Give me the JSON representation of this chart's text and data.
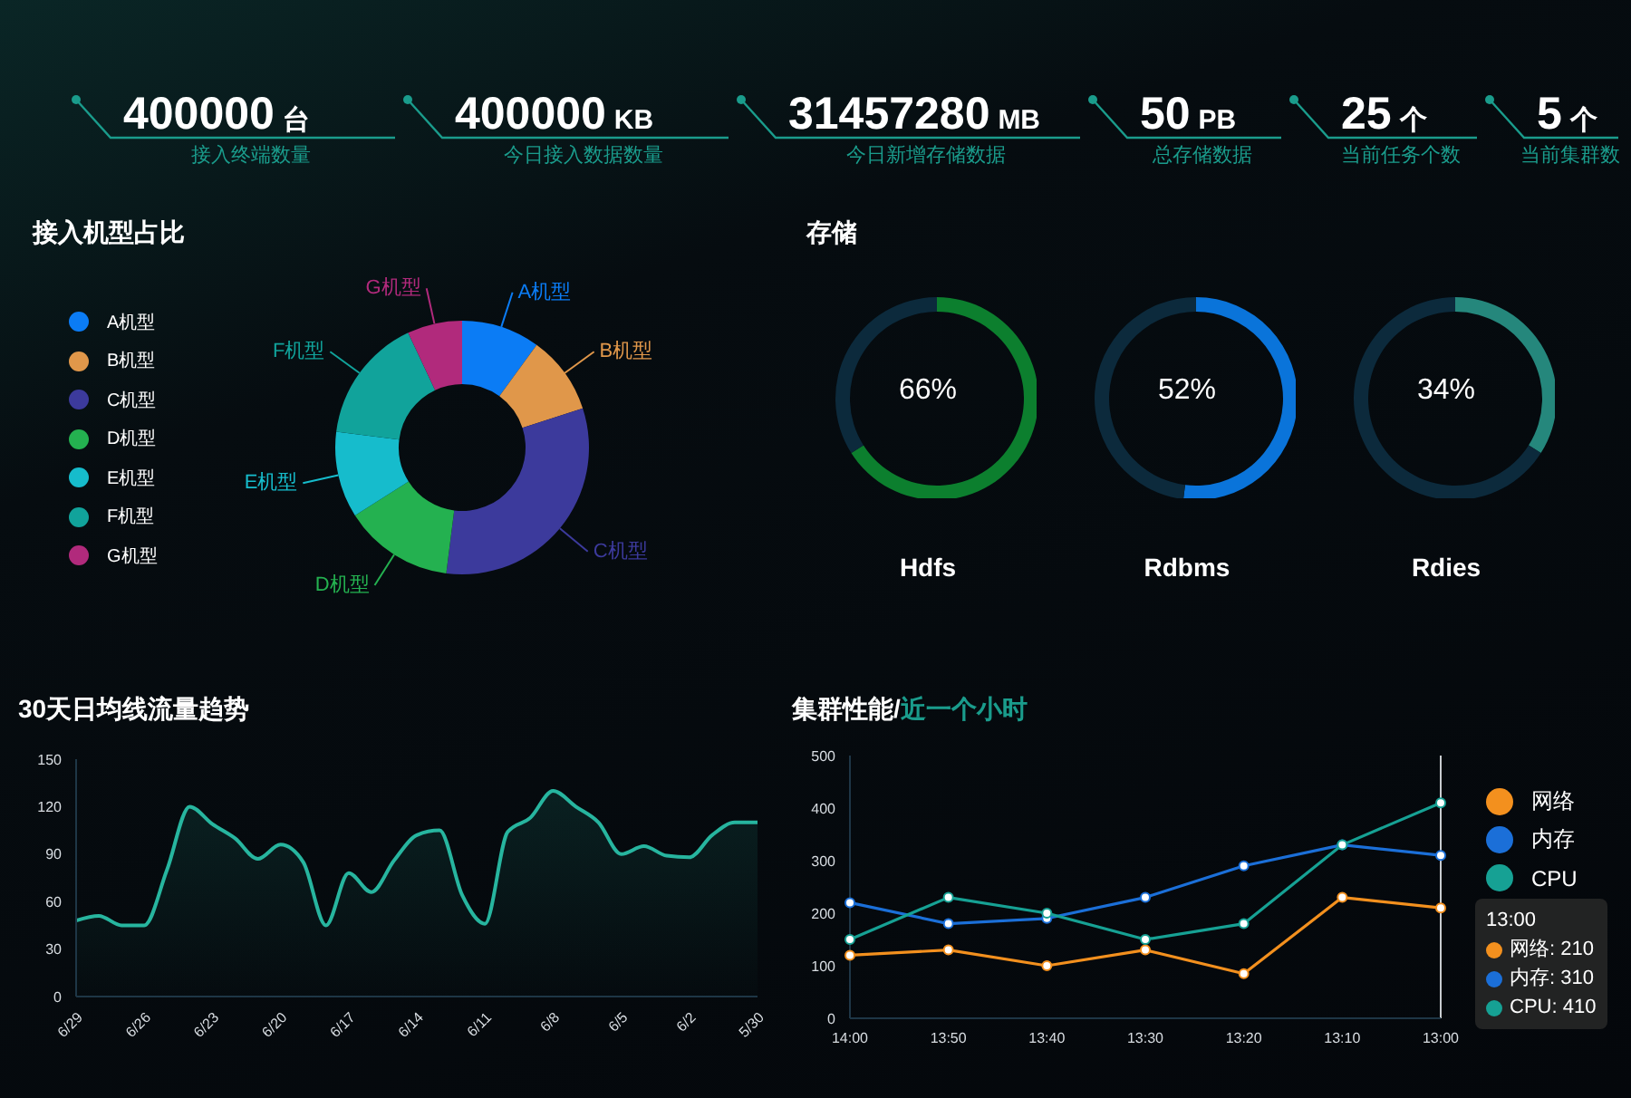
{
  "chart_data": [
    {
      "type": "other",
      "categories": [
        "接入终端数量",
        "今日接入数据数量",
        "今日新增存储数据",
        "总存储数据",
        "当前任务个数",
        "当前集群数"
      ],
      "value_labels": [
        "400000 台",
        "400000 KB",
        "31457280 MB",
        "50 PB",
        "25 个",
        "5 个"
      ]
    },
    {
      "type": "donut",
      "title": "接入机型占比",
      "categories": [
        "A机型",
        "B机型",
        "C机型",
        "D机型",
        "E机型",
        "F机型",
        "G机型"
      ],
      "values": [
        10,
        10,
        32,
        14,
        11,
        16,
        7
      ],
      "colors": [
        "#0b7cf5",
        "#e0974a",
        "#3c3a9c",
        "#24b150",
        "#16bccc",
        "#11a39b",
        "#b12a7c"
      ],
      "legend": "left"
    },
    {
      "type": "donut",
      "title": "存储",
      "categories": [
        null,
        null
      ],
      "series": [
        {
          "name": "Hdfs",
          "colors": [
            "#0c7f2e",
            "#0c2a3c"
          ],
          "values": [
            66,
            34
          ]
        },
        {
          "name": "Rdbms",
          "colors": [
            "#0a74da",
            "#0c2a3c"
          ],
          "values": [
            52,
            48
          ]
        },
        {
          "name": "Rdies",
          "colors": [
            "#25877c",
            "#0c2a3c"
          ],
          "values": [
            34,
            66
          ]
        }
      ],
      "annotations": [
        "66%",
        "52%",
        "34%"
      ]
    },
    {
      "type": "area",
      "title": "30天日均线流量趋势",
      "categories": [
        "6/29",
        null,
        null,
        "6/26",
        null,
        null,
        "6/23",
        null,
        null,
        "6/20",
        null,
        null,
        "6/17",
        null,
        null,
        "6/14",
        null,
        null,
        "6/11",
        null,
        null,
        "6/8",
        null,
        null,
        "6/5",
        null,
        null,
        "6/2",
        null,
        null,
        "5/30"
      ],
      "values": [
        48,
        51,
        45,
        45,
        80,
        120,
        109,
        100,
        87,
        96,
        85,
        45,
        78,
        66,
        86,
        102,
        105,
        64,
        46,
        104,
        113,
        130,
        120,
        110,
        90,
        95,
        89,
        88,
        102,
        110,
        110
      ],
      "color": "#27b59f",
      "ylim": [
        0,
        150
      ],
      "yticks": [
        0,
        30,
        60,
        90,
        120,
        150
      ]
    },
    {
      "type": "line",
      "title": "集群性能/",
      "subtitle": "近一个小时",
      "categories": [
        "14:00",
        "13:50",
        "13:40",
        "13:30",
        "13:20",
        "13:10",
        "13:00"
      ],
      "series": [
        {
          "name": "网络",
          "color": "#f3901e",
          "values": [
            120,
            130,
            100,
            130,
            85,
            230,
            210
          ]
        },
        {
          "name": "内存",
          "color": "#1b6fd8",
          "values": [
            220,
            180,
            190,
            230,
            290,
            330,
            310
          ]
        },
        {
          "name": "CPU",
          "color": "#16a194",
          "values": [
            150,
            230,
            200,
            150,
            180,
            330,
            410
          ]
        }
      ],
      "ylim": [
        0,
        500
      ],
      "yticks": [
        0,
        100,
        200,
        300,
        400,
        500
      ],
      "legend": "right",
      "marker": "circle",
      "ref_lines": [
        {
          "axis": "x",
          "value": "13:00"
        }
      ],
      "annotations": [
        "13:00",
        "网络: 210",
        "内存: 310",
        "CPU: 410"
      ]
    }
  ]
}
